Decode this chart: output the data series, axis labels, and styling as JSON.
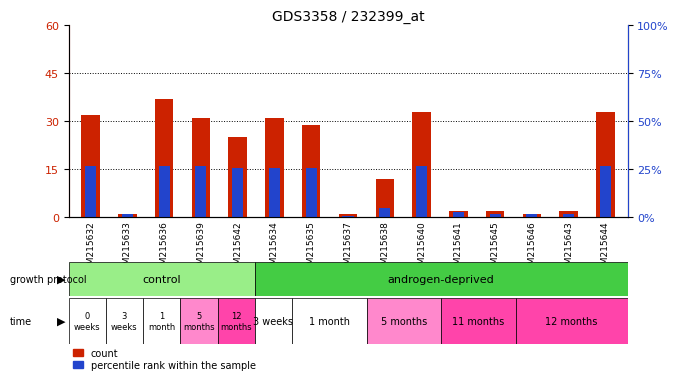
{
  "title": "GDS3358 / 232399_at",
  "samples": [
    "GSM215632",
    "GSM215633",
    "GSM215636",
    "GSM215639",
    "GSM215642",
    "GSM215634",
    "GSM215635",
    "GSM215637",
    "GSM215638",
    "GSM215640",
    "GSM215641",
    "GSM215645",
    "GSM215646",
    "GSM215643",
    "GSM215644"
  ],
  "counts": [
    32,
    1,
    37,
    31,
    25,
    31,
    29,
    1,
    12,
    33,
    2,
    2,
    1,
    2,
    33
  ],
  "percentiles": [
    27,
    2,
    27,
    27,
    26,
    26,
    26,
    1,
    5,
    27,
    3,
    2,
    2,
    2,
    27
  ],
  "bar_color": "#cc2200",
  "pct_color": "#2244cc",
  "ylim_left": [
    0,
    60
  ],
  "ylim_right": [
    0,
    100
  ],
  "yticks_left": [
    0,
    15,
    30,
    45,
    60
  ],
  "yticks_right": [
    0,
    25,
    50,
    75,
    100
  ],
  "ytick_labels_right": [
    "0%",
    "25%",
    "50%",
    "75%",
    "100%"
  ],
  "left_ycolor": "#cc2200",
  "right_ycolor": "#2244cc",
  "grid_values": [
    15,
    30,
    45
  ],
  "control_samples_count": 5,
  "androgen_samples_count": 10,
  "control_label": "control",
  "androgen_label": "androgen-deprived",
  "control_color": "#99ee88",
  "androgen_color": "#44cc44",
  "protocol_bg": "#dddddd",
  "time_label_control": [
    "0\nweeks",
    "3\nweeks",
    "1\nmonth",
    "5\nmonths",
    "12\nmonths"
  ],
  "time_label_androgen": [
    "3 weeks",
    "1 month",
    "5 months",
    "11 months",
    "12 months"
  ],
  "time_color_control": [
    "#ffffff",
    "#ffffff",
    "#ffffff",
    "#ff88cc",
    "#ff44aa"
  ],
  "time_color_androgen": [
    "#ffffff",
    "#ffffff",
    "#ff88cc",
    "#ff44aa",
    "#ff44aa"
  ],
  "legend_count_label": "count",
  "legend_pct_label": "percentile rank within the sample",
  "growth_protocol_label": "growth protocol",
  "time_row_label": "time",
  "background_color": "#ffffff"
}
